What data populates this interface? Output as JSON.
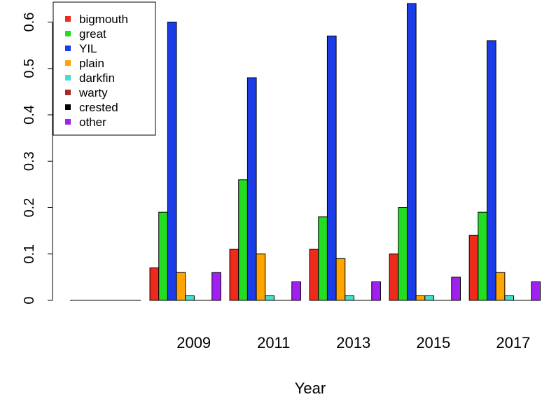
{
  "chart_data": {
    "type": "bar",
    "x_label": "Year",
    "categories": [
      null,
      "2009",
      "2011",
      "2013",
      "2015",
      "2017"
    ],
    "series": [
      {
        "name": "bigmouth",
        "color": "#ee2a1a",
        "values": [
          0,
          0.07,
          0.11,
          0.11,
          0.1,
          0.14
        ]
      },
      {
        "name": "great",
        "color": "#22dd22",
        "values": [
          0,
          0.19,
          0.26,
          0.18,
          0.2,
          0.19
        ]
      },
      {
        "name": "YIL",
        "color": "#1a3de8",
        "values": [
          0,
          0.6,
          0.48,
          0.57,
          0.64,
          0.56
        ]
      },
      {
        "name": "plain",
        "color": "#ffa500",
        "values": [
          0,
          0.06,
          0.1,
          0.09,
          0.01,
          0.06
        ]
      },
      {
        "name": "darkfin",
        "color": "#40e0d0",
        "values": [
          0,
          0.01,
          0.01,
          0.01,
          0.01,
          0.01
        ]
      },
      {
        "name": "warty",
        "color": "#a52a2a",
        "values": [
          0,
          0,
          0,
          0,
          0,
          0
        ]
      },
      {
        "name": "crested",
        "color": "#000000",
        "values": [
          0,
          0,
          0,
          0,
          0,
          0
        ]
      },
      {
        "name": "other",
        "color": "#a020f0",
        "values": [
          0,
          0.06,
          0.04,
          0.04,
          0.05,
          0.04
        ]
      }
    ],
    "ylim": [
      0,
      0.64
    ],
    "yticks": [
      0.0,
      0.1,
      0.2,
      0.3,
      0.4,
      0.5,
      0.6
    ],
    "legend": "topleft"
  }
}
